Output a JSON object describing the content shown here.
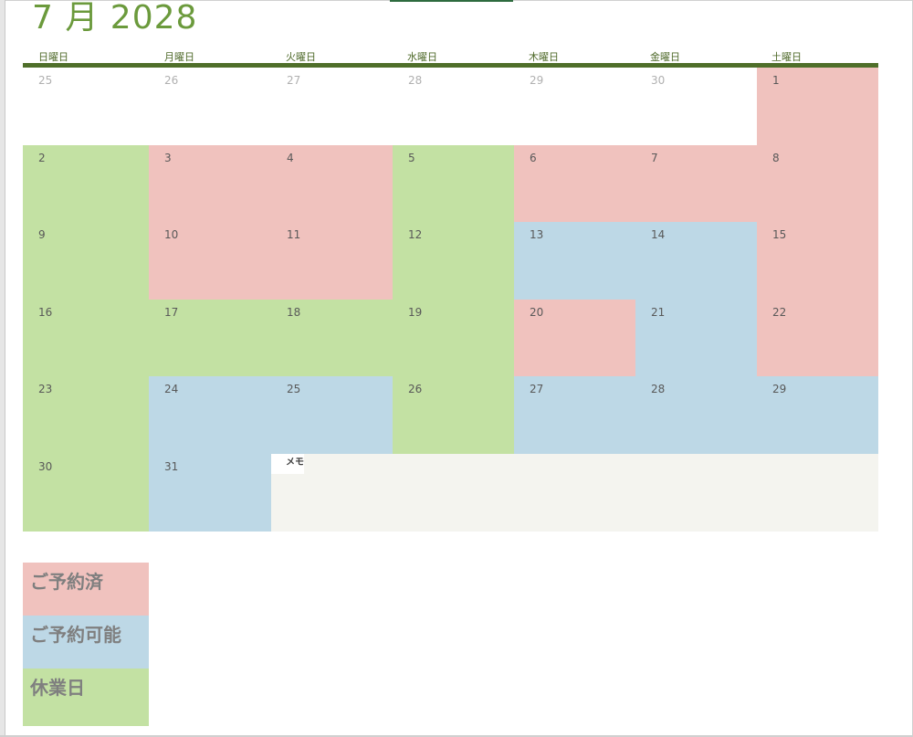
{
  "calendar": {
    "title": "7 月 2028",
    "weekdays": [
      "日曜日",
      "月曜日",
      "火曜日",
      "水曜日",
      "木曜日",
      "金曜日",
      "土曜日"
    ],
    "days": [
      {
        "label": "25",
        "status": "none",
        "muted": true
      },
      {
        "label": "26",
        "status": "none",
        "muted": true
      },
      {
        "label": "27",
        "status": "none",
        "muted": true
      },
      {
        "label": "28",
        "status": "none",
        "muted": true
      },
      {
        "label": "29",
        "status": "none",
        "muted": true
      },
      {
        "label": "30",
        "status": "none",
        "muted": true
      },
      {
        "label": "1",
        "status": "booked"
      },
      {
        "label": "2",
        "status": "closed"
      },
      {
        "label": "3",
        "status": "booked"
      },
      {
        "label": "4",
        "status": "booked"
      },
      {
        "label": "5",
        "status": "closed"
      },
      {
        "label": "6",
        "status": "booked"
      },
      {
        "label": "7",
        "status": "booked"
      },
      {
        "label": "8",
        "status": "booked"
      },
      {
        "label": "9",
        "status": "closed"
      },
      {
        "label": "10",
        "status": "booked"
      },
      {
        "label": "11",
        "status": "booked"
      },
      {
        "label": "12",
        "status": "closed"
      },
      {
        "label": "13",
        "status": "available"
      },
      {
        "label": "14",
        "status": "available"
      },
      {
        "label": "15",
        "status": "booked"
      },
      {
        "label": "16",
        "status": "closed"
      },
      {
        "label": "17",
        "status": "closed"
      },
      {
        "label": "18",
        "status": "closed"
      },
      {
        "label": "19",
        "status": "closed"
      },
      {
        "label": "20",
        "status": "booked"
      },
      {
        "label": "21",
        "status": "available"
      },
      {
        "label": "22",
        "status": "booked"
      },
      {
        "label": "23",
        "status": "closed"
      },
      {
        "label": "24",
        "status": "available"
      },
      {
        "label": "25",
        "status": "available"
      },
      {
        "label": "26",
        "status": "closed"
      },
      {
        "label": "27",
        "status": "available"
      },
      {
        "label": "28",
        "status": "available"
      },
      {
        "label": "29",
        "status": "available"
      },
      {
        "label": "30",
        "status": "closed"
      },
      {
        "label": "31",
        "status": "available"
      }
    ],
    "memo_label": "メモ"
  },
  "legend": {
    "booked": "ご予約済",
    "available": "ご予約可能",
    "closed": "休業日"
  },
  "colors": {
    "booked": "#f0c2be",
    "available": "#bdd8e6",
    "closed": "#c3e1a3",
    "none": "#ffffff"
  }
}
